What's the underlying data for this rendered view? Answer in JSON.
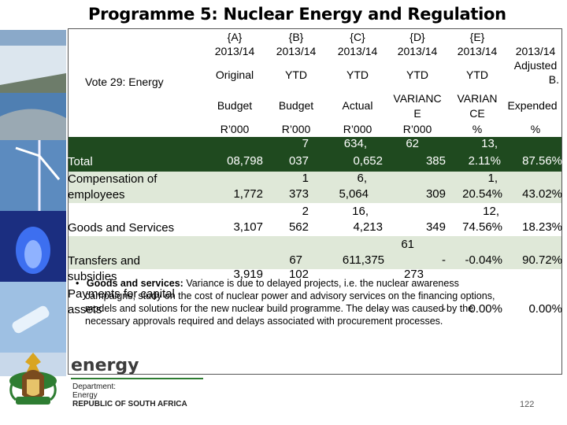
{
  "title": "Programme 5: Nuclear Energy and Regulation",
  "vote_label": "Vote 29: Energy",
  "columns": [
    {
      "letter": "{A}",
      "year": "2013/14",
      "type": "Original",
      "sub": "Budget",
      "unit": "R’000"
    },
    {
      "letter": "{B}",
      "year": "2013/14",
      "type": "YTD",
      "sub": "Budget",
      "unit": "R’000"
    },
    {
      "letter": "{C}",
      "year": "2013/14",
      "type": "YTD",
      "sub": "Actual",
      "unit": "R’000"
    },
    {
      "letter": "{D}",
      "year": "2013/14",
      "type": "YTD",
      "sub1": "VARIANC",
      "sub2": "E",
      "unit": "R’000"
    },
    {
      "letter": "{E}",
      "year": "2013/14",
      "type": "YTD",
      "sub1": "VARIAN",
      "sub2": "CE",
      "unit": "%"
    },
    {
      "letter": "",
      "year": "2013/14",
      "type1": "Adjusted",
      "type2": "B.",
      "sub": "Expended",
      "unit": "%"
    }
  ],
  "rows": [
    {
      "label1": "Total",
      "a": "08,798",
      "b1": "7",
      "b2": "037",
      "c1": "634,",
      "c2": "0,652",
      "d1": "62",
      "d2": "385",
      "e1": "13,",
      "e2": "2.11%",
      "f": "87.56%"
    },
    {
      "label1": "Compensation of",
      "label2": "employees",
      "a": "1,772",
      "b1": "1",
      "b2": "373",
      "c1": "6,",
      "c2": "5,064",
      "d2": "309",
      "e1": "1,",
      "e2": "20.54%",
      "f": "43.02%"
    },
    {
      "label1": "Goods and Services",
      "a": "3,107",
      "b1": "2",
      "b2": "562",
      "c1": "16,",
      "c2": "4,213",
      "d2": "349",
      "e1": "12,",
      "e2": "74.56%",
      "f": "18.23%"
    },
    {
      "label1": "Transfers and",
      "label2": "subsidies",
      "a": "3,919",
      "b1": "67",
      "b2": "102",
      "c1": "611,375",
      "d0": "61",
      "d1": "-",
      "d2": "273",
      "e2": "-0.04%",
      "f": "90.72%"
    },
    {
      "label1": "Payments for capital",
      "label2": "assets",
      "a": "-",
      "b1": "-",
      "c1": "-",
      "d1": "-",
      "e2": "0.00%",
      "f": "0.00%"
    }
  ],
  "note": {
    "bullet": "•",
    "bold": "Goods and services:",
    "line1": " Variance is due to delayed projects, i.e. the nuclear awareness",
    "line2": "campaigns, study on the cost of nuclear power and advisory services on the financing options,",
    "line3": "models and solutions for the new nuclear build programme. The delay was caused by the",
    "line4": "necessary approvals required and delays associated with procurement processes."
  },
  "logo": {
    "word": "energy",
    "line1": "Department:",
    "line2": "Energy",
    "line3": "REPUBLIC OF SOUTH AFRICA"
  },
  "slide_number": "122",
  "colors": {
    "band_dark": "#1f4a1f",
    "band_light": "#dfe8d8",
    "accent_green": "#2e7d32"
  }
}
